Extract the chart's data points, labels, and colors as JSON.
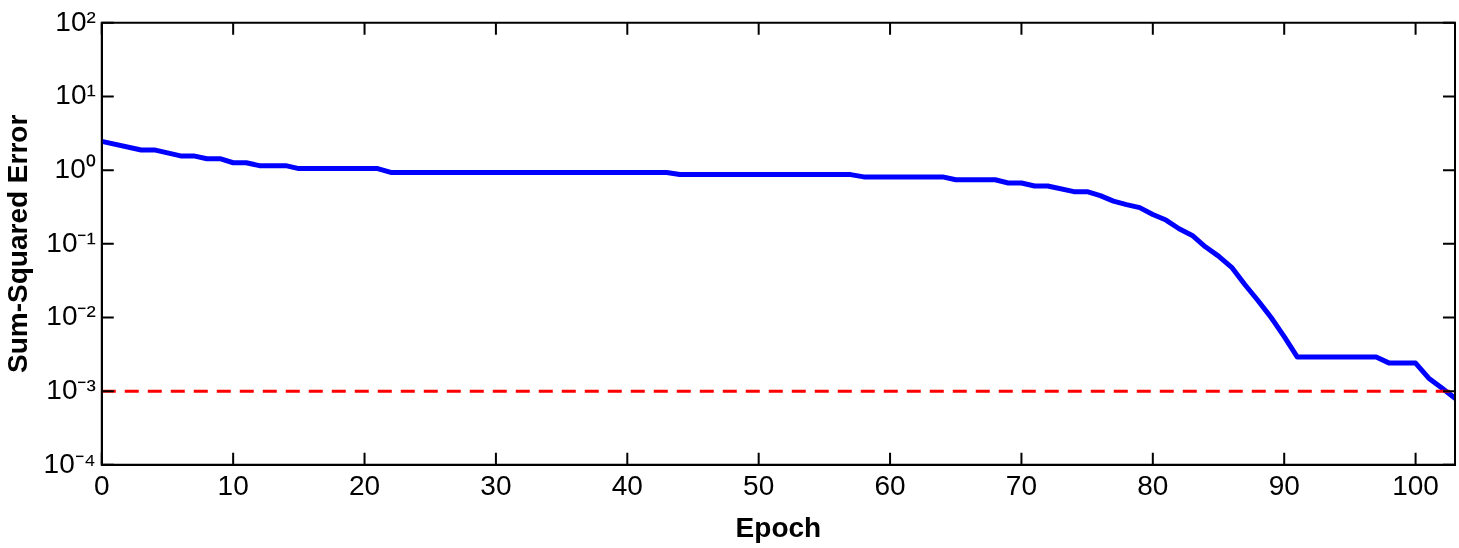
{
  "chart_data": {
    "type": "line",
    "xlabel": "Epoch",
    "ylabel": "Sum-Squared Error",
    "log": "y",
    "grid": false,
    "legend": false,
    "marker": "none",
    "line_style": "solid",
    "xlim": [
      0,
      103
    ],
    "xticks": [
      0,
      10,
      20,
      30,
      40,
      50,
      60,
      70,
      80,
      90,
      100
    ],
    "ylim": [
      0.0001,
      100
    ],
    "yticks": [
      {
        "value": 0.0001,
        "label": "10⁻⁴"
      },
      {
        "value": 0.001,
        "label": "10⁻³"
      },
      {
        "value": 0.01,
        "label": "10⁻²"
      },
      {
        "value": 0.1,
        "label": "10⁻¹"
      },
      {
        "value": 1,
        "label": "10⁰"
      },
      {
        "value": 10,
        "label": "10¹"
      },
      {
        "value": 100,
        "label": "10²"
      }
    ],
    "ref_lines": [
      {
        "axis": "y",
        "value": 0.001,
        "color": "#ff0000",
        "line_style": "dashed"
      }
    ],
    "series": [
      {
        "color": "#0000ff",
        "x": [
          0,
          3,
          4,
          6,
          7,
          8,
          9,
          10,
          11,
          12,
          14,
          15,
          21,
          22,
          43,
          44,
          57,
          58,
          64,
          65,
          68,
          69,
          70,
          71,
          72,
          74,
          75,
          76,
          77,
          78,
          79,
          80,
          81,
          82,
          83,
          84,
          85,
          86,
          87,
          88,
          89,
          90,
          91,
          97,
          98,
          99,
          100,
          101,
          102,
          103
        ],
        "values": [
          2.46,
          1.88,
          1.88,
          1.56,
          1.56,
          1.43,
          1.43,
          1.26,
          1.26,
          1.15,
          1.15,
          1.05,
          1.05,
          0.93,
          0.93,
          0.87,
          0.87,
          0.81,
          0.81,
          0.74,
          0.74,
          0.67,
          0.67,
          0.61,
          0.61,
          0.51,
          0.51,
          0.45,
          0.38,
          0.34,
          0.31,
          0.25,
          0.21,
          0.16,
          0.13,
          0.091,
          0.068,
          0.048,
          0.028,
          0.017,
          0.01,
          0.0055,
          0.0029,
          0.0029,
          0.0024,
          0.0024,
          0.0024,
          0.0015,
          0.0011,
          0.0008
        ]
      }
    ]
  }
}
